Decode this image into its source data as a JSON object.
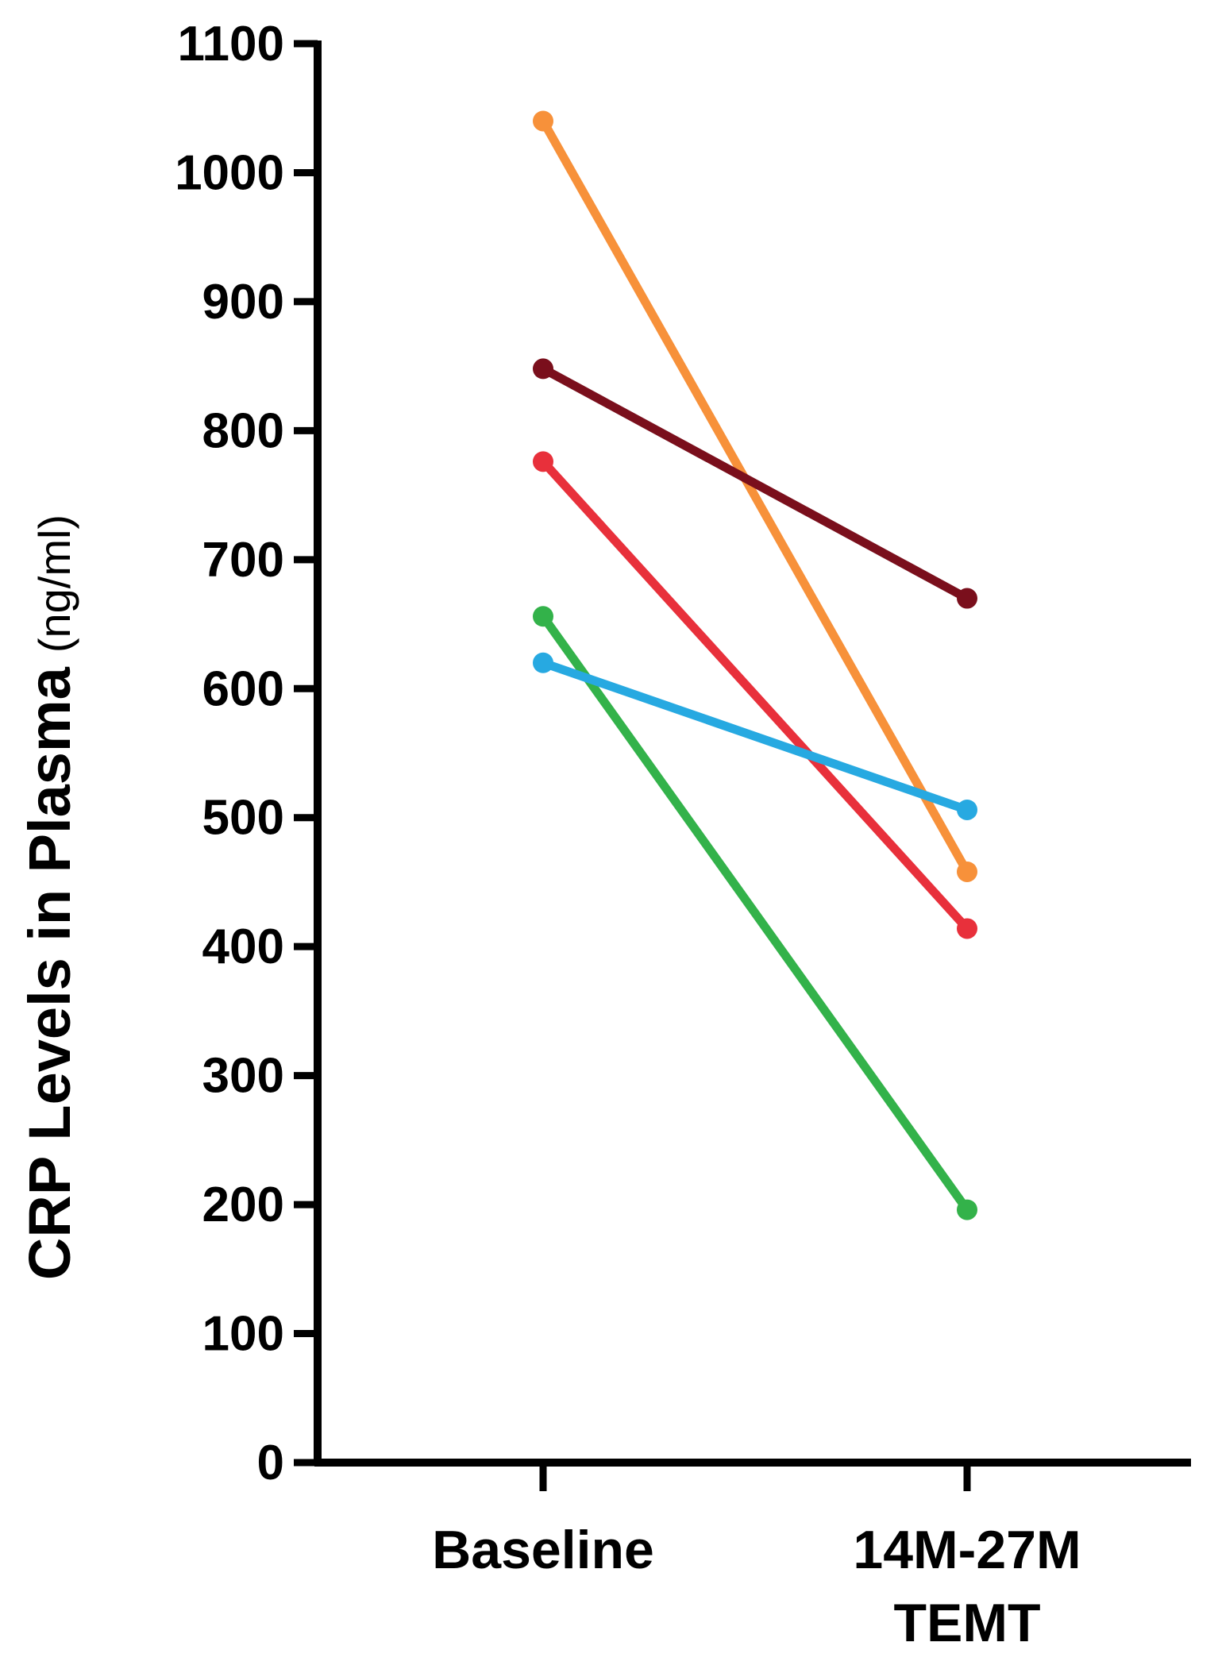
{
  "chart_data": {
    "type": "line",
    "categories": [
      "Baseline",
      "14M-27M TEMT"
    ],
    "category_lines": [
      [
        "Baseline"
      ],
      [
        "14M-27M",
        "TEMT"
      ]
    ],
    "ylabel": "CRP Levels in Plasma",
    "ylabel_unit": "(ng/ml)",
    "ylim": [
      0,
      1100
    ],
    "yticks": [
      "0",
      "100",
      "200",
      "300",
      "400",
      "500",
      "600",
      "700",
      "800",
      "900",
      "1000",
      "1100"
    ],
    "grid": false,
    "series": [
      {
        "values": [
          1040,
          458
        ],
        "color": "#f7913a"
      },
      {
        "values": [
          848,
          670
        ],
        "color": "#7a0f1c"
      },
      {
        "values": [
          776,
          414
        ],
        "color": "#e8303b"
      },
      {
        "values": [
          656,
          196
        ],
        "color": "#33b24a"
      },
      {
        "values": [
          620,
          506
        ],
        "color": "#27a9e1"
      }
    ]
  }
}
